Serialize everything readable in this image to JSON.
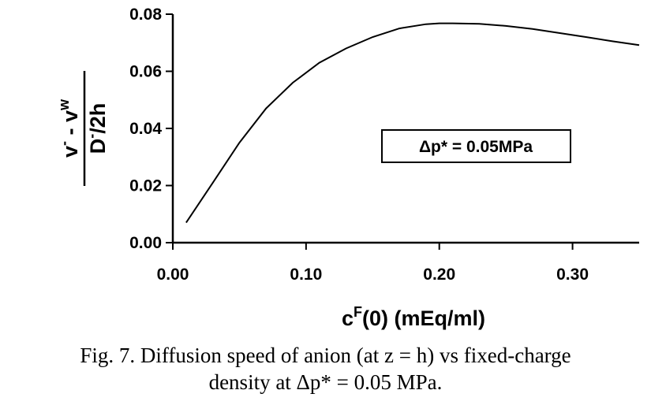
{
  "chart_data": {
    "type": "line",
    "x": [
      0.01,
      0.03,
      0.05,
      0.07,
      0.09,
      0.11,
      0.13,
      0.15,
      0.17,
      0.19,
      0.2,
      0.21,
      0.23,
      0.25,
      0.27,
      0.29,
      0.31,
      0.33,
      0.35
    ],
    "y": [
      0.007,
      0.021,
      0.035,
      0.047,
      0.056,
      0.063,
      0.068,
      0.072,
      0.075,
      0.0765,
      0.0768,
      0.0768,
      0.0766,
      0.0759,
      0.0748,
      0.0734,
      0.072,
      0.0705,
      0.0692
    ],
    "xlim": [
      0.0,
      0.35
    ],
    "ylim": [
      0.0,
      0.08
    ],
    "xticks": [
      "0.00",
      "0.10",
      "0.20",
      "0.30"
    ],
    "yticks": [
      "0.00",
      "0.02",
      "0.04",
      "0.06",
      "0.08"
    ],
    "xlabel": {
      "main": "c",
      "sup": "F",
      "rest": "(0) (mEq/ml)"
    },
    "ylabel": {
      "numerator": {
        "v1": "v",
        "sup1": "-",
        "mid": " - v",
        "sup2": "w"
      },
      "denominator": {
        "d": "D",
        "sup": "-",
        "rest": "/2h"
      }
    },
    "annotation": "Δp* = 0.05MPa",
    "grid": false,
    "line_color": "#000000"
  },
  "caption": {
    "line1": "Fig. 7. Diffusion speed of anion (at z = h) vs fixed-charge",
    "line2": "density at Δp* = 0.05 MPa."
  }
}
